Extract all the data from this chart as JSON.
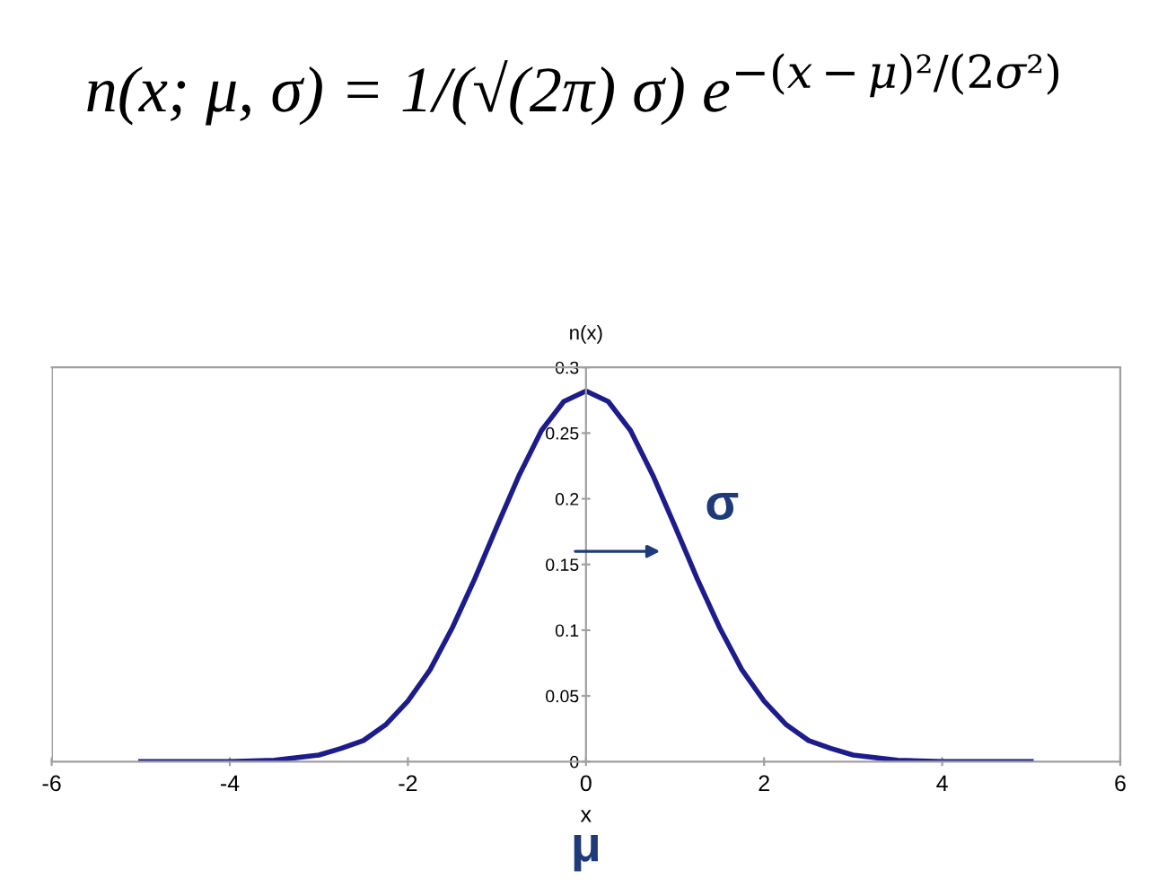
{
  "chart_data": {
    "type": "line",
    "title": "n(x; μ, σ) = 1/(√(2π) σ) e$^{−(x−μ)²/(2σ²)}$",
    "ylabel": "n(x)",
    "xlabel": "x",
    "x": [
      -5,
      -4.5,
      -4,
      -3.5,
      -3,
      -2.75,
      -2.5,
      -2.25,
      -2,
      -1.75,
      -1.5,
      -1.25,
      -1,
      -0.75,
      -0.5,
      -0.25,
      0,
      0.25,
      0.5,
      0.75,
      1,
      1.25,
      1.5,
      1.75,
      2,
      2.25,
      2.5,
      2.75,
      3,
      3.5,
      4,
      4.5,
      5
    ],
    "series": [
      {
        "color": "#1c1c8c",
        "values": [
          0,
          0,
          0,
          0.001,
          0.005,
          0.01,
          0.016,
          0.028,
          0.046,
          0.07,
          0.102,
          0.139,
          0.179,
          0.218,
          0.252,
          0.274,
          0.282,
          0.274,
          0.252,
          0.218,
          0.179,
          0.139,
          0.102,
          0.07,
          0.046,
          0.028,
          0.016,
          0.01,
          0.005,
          0.001,
          0,
          0,
          0
        ]
      }
    ],
    "xlim": [
      -6,
      6
    ],
    "xticks": [
      -6,
      -4,
      -2,
      0,
      2,
      4,
      6
    ],
    "ylim": [
      0,
      0.3
    ],
    "yticks": [
      0,
      0.05,
      0.1,
      0.15,
      0.2,
      0.25,
      0.3
    ],
    "grid": false,
    "legend": false,
    "marker": "none",
    "line_style": "solid",
    "annotations": [
      {
        "text": "σ",
        "x": 1.0,
        "y": 0.16
      },
      "μ"
    ]
  }
}
